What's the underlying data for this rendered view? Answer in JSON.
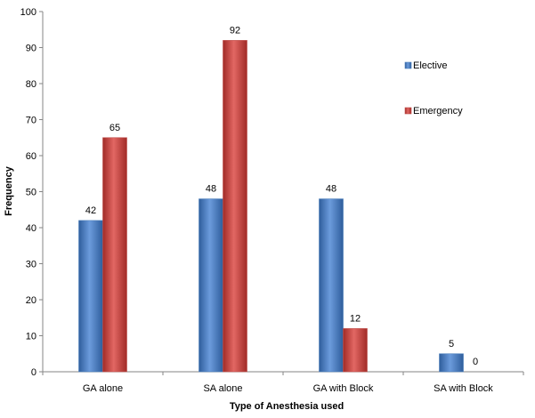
{
  "chart_data": {
    "type": "bar",
    "title": "",
    "xlabel": "Type of Anesthesia used",
    "ylabel": "Frequency",
    "ylim": [
      0,
      100
    ],
    "ytick_step": 10,
    "categories": [
      "GA alone",
      "SA alone",
      "GA with Block",
      "SA with Block"
    ],
    "series": [
      {
        "name": "Elective",
        "values": [
          42,
          48,
          48,
          5
        ],
        "color": "#4a7ebb"
      },
      {
        "name": "Emergency",
        "values": [
          65,
          92,
          12,
          0
        ],
        "color": "#c0504d"
      }
    ],
    "grid": false,
    "legend": "right",
    "data_labels": true
  }
}
